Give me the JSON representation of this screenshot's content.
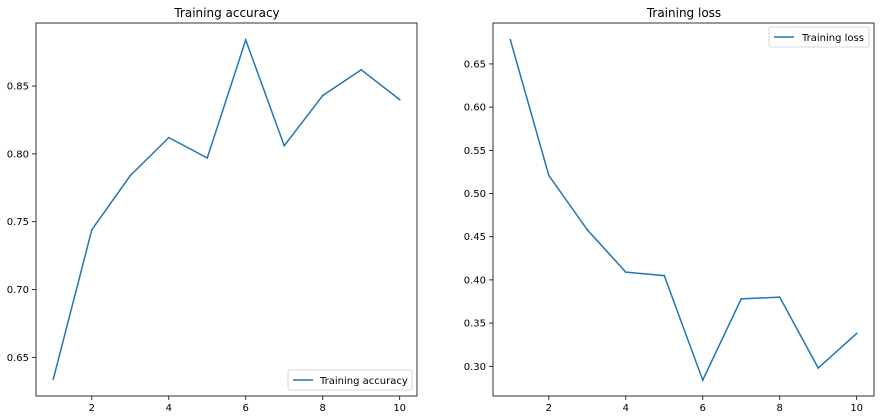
{
  "chart_data": [
    {
      "type": "line",
      "title": "Training accuracy",
      "xlabel": "",
      "ylabel": "",
      "x": [
        1,
        2,
        3,
        4,
        5,
        6,
        7,
        8,
        9,
        10
      ],
      "series": [
        {
          "name": "Training accuracy",
          "values": [
            0.634,
            0.744,
            0.784,
            0.812,
            0.797,
            0.884,
            0.806,
            0.843,
            0.862,
            0.84
          ],
          "color": "#1f77b4"
        }
      ],
      "xlim": [
        0.55,
        10.45
      ],
      "ylim": [
        0.6215,
        0.8965
      ],
      "xticks": [
        2,
        4,
        6,
        8,
        10
      ],
      "yticks": [
        0.65,
        0.7,
        0.75,
        0.8,
        0.85
      ],
      "ytick_labels": [
        "0.65",
        "0.70",
        "0.75",
        "0.80",
        "0.85"
      ],
      "legend": "lower-right",
      "grid": false
    },
    {
      "type": "line",
      "title": "Training loss",
      "xlabel": "",
      "ylabel": "",
      "x": [
        1,
        2,
        3,
        4,
        5,
        6,
        7,
        8,
        9,
        10
      ],
      "series": [
        {
          "name": "Training loss",
          "values": [
            0.678,
            0.521,
            0.458,
            0.409,
            0.405,
            0.284,
            0.378,
            0.38,
            0.298,
            0.338
          ],
          "color": "#1f77b4"
        }
      ],
      "xlim": [
        0.55,
        10.45
      ],
      "ylim": [
        0.2656,
        0.6974
      ],
      "xticks": [
        2,
        4,
        6,
        8,
        10
      ],
      "yticks": [
        0.3,
        0.35,
        0.4,
        0.45,
        0.5,
        0.55,
        0.6,
        0.65
      ],
      "ytick_labels": [
        "0.30",
        "0.35",
        "0.40",
        "0.45",
        "0.50",
        "0.55",
        "0.60",
        "0.65"
      ],
      "legend": "top-right",
      "grid": false
    }
  ]
}
